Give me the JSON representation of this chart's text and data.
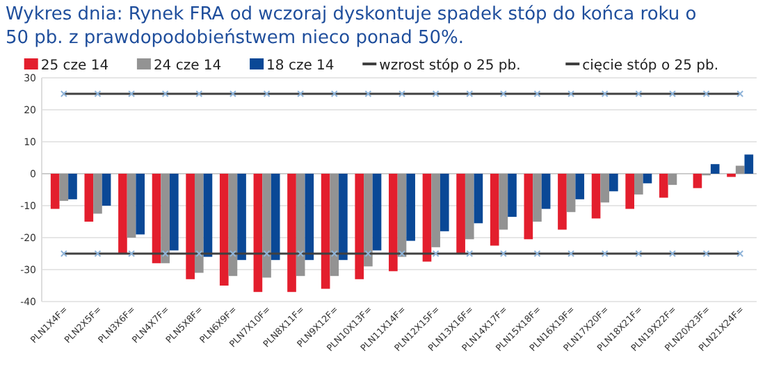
{
  "chart_data": {
    "type": "bar",
    "title": "Wykres dnia: Rynek FRA od wczoraj dyskontuje spadek stóp do końca roku o 50 pb. z prawdopodobieństwem nieco ponad 50%.",
    "categories": [
      "PLN1X4F=",
      "PLN2X5F=",
      "PLN3X6F=",
      "PLN4X7F=",
      "PLN5X8F=",
      "PLN6X9F=",
      "PLN7X10F=",
      "PLN8X11F=",
      "PLN9X12F=",
      "PLN10X13F=",
      "PLN11X14F=",
      "PLN12X15F=",
      "PLN13X16F=",
      "PLN14X17F=",
      "PLN15X18F=",
      "PLN16X19F=",
      "PLN17X20F=",
      "PLN18X21F=",
      "PLN19X22F=",
      "PLN20X23F=",
      "PLN21X24F="
    ],
    "series": [
      {
        "name": "25 cze 14",
        "color": "#e31e2d",
        "values": [
          -11,
          -15,
          -25,
          -28,
          -33,
          -35,
          -37,
          -37,
          -36,
          -33,
          -30.5,
          -27.5,
          -25,
          -22.5,
          -20.5,
          -17.5,
          -14,
          -11,
          -7.5,
          -4.5,
          -1
        ]
      },
      {
        "name": "24 cze 14",
        "color": "#939393",
        "values": [
          -8.5,
          -12.5,
          -20,
          -28,
          -31,
          -32,
          -32.5,
          -32,
          -32,
          -29,
          -26,
          -23,
          -20.5,
          -17.5,
          -15,
          -12,
          -9,
          -6.5,
          -3.5,
          -0.5,
          2.5
        ]
      },
      {
        "name": "18 cze 14",
        "color": "#0a4896",
        "values": [
          -8,
          -10,
          -19,
          -24,
          -26,
          -27,
          -27,
          -27,
          -27,
          -24,
          -21,
          -18,
          -15.5,
          -13.5,
          -11,
          -8,
          -5.5,
          -3,
          null,
          3,
          6
        ]
      },
      {
        "name": "wzrost stóp o 25 pb.",
        "type": "line",
        "color": "#404040",
        "marker": "cross",
        "values": [
          25,
          25,
          25,
          25,
          25,
          25,
          25,
          25,
          25,
          25,
          25,
          25,
          25,
          25,
          25,
          25,
          25,
          25,
          25,
          25,
          25
        ]
      },
      {
        "name": "cięcie stóp o 25 pb.",
        "type": "line",
        "color": "#404040",
        "marker": "cross",
        "values": [
          -25,
          -25,
          -25,
          -25,
          -25,
          -25,
          -25,
          -25,
          -25,
          -25,
          -25,
          -25,
          -25,
          -25,
          -25,
          -25,
          -25,
          -25,
          -25,
          -25,
          -25
        ]
      }
    ],
    "ylim": [
      -40,
      30
    ],
    "yticks": [
      -40,
      -30,
      -20,
      -10,
      0,
      10,
      20,
      30
    ],
    "grid": "y",
    "legend": "top"
  }
}
